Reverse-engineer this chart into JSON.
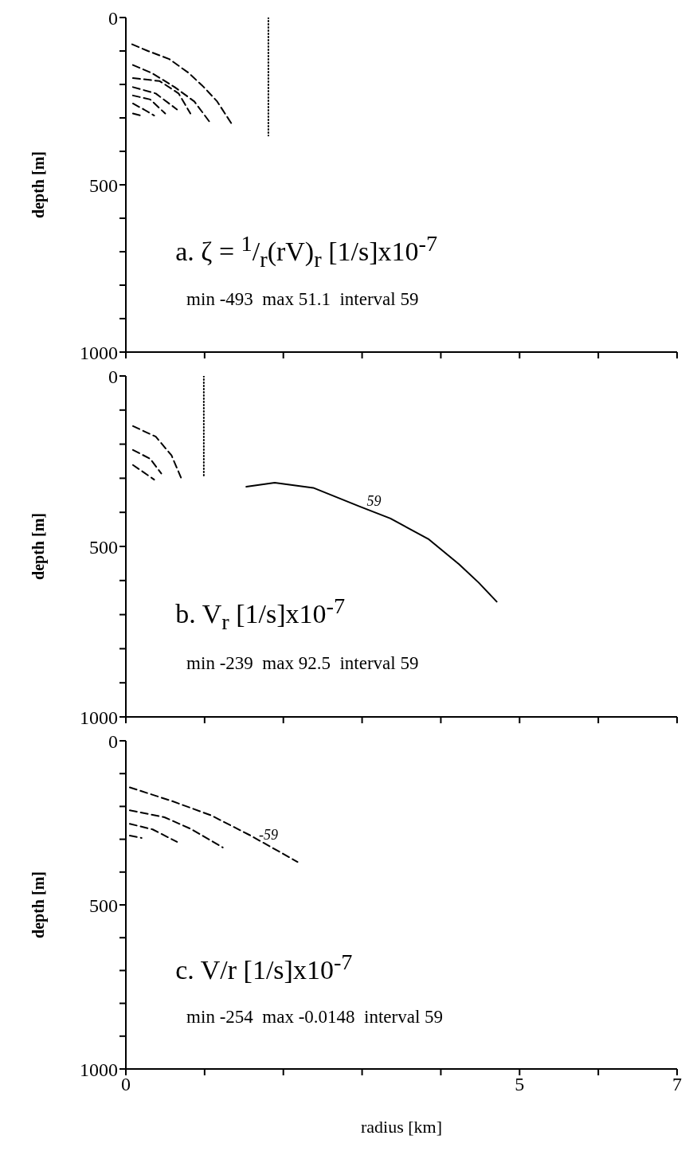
{
  "chart_data": [
    {
      "type": "line",
      "ylabel": "depth [m]",
      "xlim": [
        0,
        7
      ],
      "ylim": [
        1000,
        0
      ],
      "marker": "none",
      "tick_labels": "y",
      "xticks": [
        0,
        {
          "value": 1,
          "label": null
        },
        {
          "value": 2,
          "label": null
        },
        {
          "value": 3,
          "label": null
        },
        {
          "value": 4,
          "label": null
        },
        5,
        {
          "value": 6,
          "label": null
        },
        7
      ],
      "yticks": [
        0,
        {
          "value": 100,
          "label": null
        },
        {
          "value": 200,
          "label": null
        },
        {
          "value": 300,
          "label": null
        },
        {
          "value": 400,
          "label": null
        },
        500,
        {
          "value": 600,
          "label": null
        },
        {
          "value": 700,
          "label": null
        },
        {
          "value": 800,
          "label": null
        },
        {
          "value": 900,
          "label": null
        },
        1000
      ],
      "series": [
        {
          "color": "#000000",
          "line_style": "dashed",
          "x": [
            0.08,
            0.28,
            0.55,
            0.8,
            0.99,
            1.16,
            1.35
          ],
          "values": [
            80,
            100,
            124,
            166,
            208,
            251,
            320
          ]
        },
        {
          "color": "#000000",
          "line_style": "dashed",
          "x": [
            0.09,
            0.33,
            0.62,
            0.87,
            1.06
          ],
          "values": [
            142,
            166,
            208,
            251,
            311
          ]
        },
        {
          "color": "#000000",
          "line_style": "dashed",
          "x": [
            0.09,
            0.43,
            0.67,
            0.82
          ],
          "values": [
            181,
            190,
            227,
            287
          ]
        },
        {
          "color": "#000000",
          "line_style": "dashed",
          "x": [
            0.09,
            0.38,
            0.65
          ],
          "values": [
            208,
            227,
            275
          ]
        },
        {
          "color": "#000000",
          "line_style": "dashed",
          "x": [
            0.09,
            0.31,
            0.5
          ],
          "values": [
            233,
            245,
            287
          ]
        },
        {
          "color": "#000000",
          "line_style": "dashed",
          "x": [
            0.09,
            0.23,
            0.36
          ],
          "values": [
            257,
            275,
            293
          ]
        },
        {
          "color": "#000000",
          "line_style": "dashed",
          "x": [
            0.09,
            0.19
          ],
          "values": [
            287,
            293
          ]
        },
        {
          "color": "#000000",
          "line_style": "dotted",
          "x": [
            1.81,
            1.81
          ],
          "values": [
            0,
            353
          ]
        }
      ],
      "annotations": [
        "a. ζ = $^{1}$/$_{r}$(rV)$_{r}$ [1/s]x10$^{-7}$",
        "min -493  max 51.1  interval 59"
      ]
    },
    {
      "type": "line",
      "ylabel": "depth [m]",
      "xlim": [
        0,
        7
      ],
      "ylim": [
        1000,
        0
      ],
      "marker": "none",
      "tick_labels": "y",
      "xticks": [
        0,
        {
          "value": 1,
          "label": null
        },
        {
          "value": 2,
          "label": null
        },
        {
          "value": 3,
          "label": null
        },
        {
          "value": 4,
          "label": null
        },
        5,
        {
          "value": 6,
          "label": null
        },
        7
      ],
      "yticks": [
        0,
        {
          "value": 100,
          "label": null
        },
        {
          "value": 200,
          "label": null
        },
        {
          "value": 300,
          "label": null
        },
        {
          "value": 400,
          "label": null
        },
        500,
        {
          "value": 600,
          "label": null
        },
        {
          "value": 700,
          "label": null
        },
        {
          "value": 800,
          "label": null
        },
        {
          "value": 900,
          "label": null
        },
        1000
      ],
      "series": [
        {
          "color": "#000000",
          "line_style": "dashed",
          "x": [
            0.09,
            0.38,
            0.58,
            0.7
          ],
          "values": [
            147,
            178,
            233,
            298
          ]
        },
        {
          "color": "#000000",
          "line_style": "dashed",
          "x": [
            0.09,
            0.31,
            0.45
          ],
          "values": [
            217,
            243,
            286
          ]
        },
        {
          "color": "#000000",
          "line_style": "dashed",
          "x": [
            0.09,
            0.36
          ],
          "values": [
            261,
            304
          ]
        },
        {
          "color": "#000000",
          "line_style": "dotted",
          "x": [
            0.99,
            0.99
          ],
          "values": [
            0,
            295
          ]
        },
        {
          "color": "#000000",
          "line_style": "solid",
          "x": [
            1.53,
            1.89,
            2.38,
            2.97,
            3.36,
            3.84,
            4.23,
            4.48,
            4.71
          ],
          "values": [
            325,
            313,
            328,
            383,
            418,
            478,
            552,
            606,
            662
          ]
        }
      ],
      "annotations": [
        {
          "text": "59",
          "x": 3.15,
          "y": 400
        },
        "b. V$_{r}$ [1/s]x10$^{-7}$",
        "min -239  max 92.5  interval 59"
      ]
    },
    {
      "type": "line",
      "ylabel": "depth [m]",
      "xlabel": "radius [km]",
      "xlim": [
        0,
        7
      ],
      "ylim": [
        1000,
        0
      ],
      "marker": "none",
      "xticks": [
        0,
        {
          "value": 1,
          "label": null
        },
        {
          "value": 2,
          "label": null
        },
        {
          "value": 3,
          "label": null
        },
        {
          "value": 4,
          "label": null
        },
        5,
        {
          "value": 6,
          "label": null
        },
        7
      ],
      "yticks": [
        0,
        {
          "value": 100,
          "label": null
        },
        {
          "value": 200,
          "label": null
        },
        {
          "value": 300,
          "label": null
        },
        {
          "value": 400,
          "label": null
        },
        500,
        {
          "value": 600,
          "label": null
        },
        {
          "value": 700,
          "label": null
        },
        {
          "value": 800,
          "label": null
        },
        {
          "value": 900,
          "label": null
        },
        1000
      ],
      "series": [
        {
          "color": "#000000",
          "line_style": "dashed",
          "x": [
            0.05,
            0.59,
            1.08,
            1.57,
            2.18
          ],
          "values": [
            142,
            184,
            227,
            287,
            369
          ]
        },
        {
          "color": "#000000",
          "line_style": "dashed",
          "x": [
            0.05,
            0.49,
            0.83,
            1.23
          ],
          "values": [
            212,
            233,
            269,
            325
          ]
        },
        {
          "color": "#000000",
          "line_style": "dashed",
          "x": [
            0.05,
            0.34,
            0.65
          ],
          "values": [
            253,
            270,
            308
          ]
        },
        {
          "color": "#000000",
          "line_style": "dashed",
          "x": [
            0.05,
            0.2
          ],
          "values": [
            289,
            296
          ]
        }
      ],
      "annotations": [
        {
          "text": "-59",
          "x": 1.81,
          "y": 320
        },
        "c. V/r [1/s]x10$^{-7}$",
        "min -254  max -0.0148  interval 59"
      ]
    }
  ]
}
